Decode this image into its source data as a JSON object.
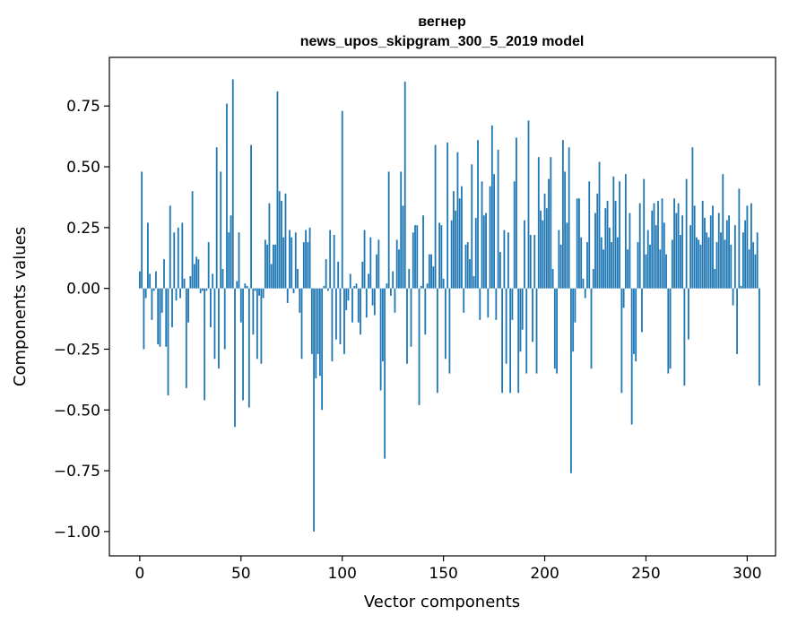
{
  "chart_data": {
    "type": "bar",
    "title_line1": "вегнер",
    "title_line2": "news_upos_skipgram_300_5_2019 model",
    "xlabel": "Vector components",
    "ylabel": "Components values",
    "xlim": [
      -15,
      314
    ],
    "ylim": [
      -1.1,
      0.95
    ],
    "xticks": [
      0,
      50,
      100,
      150,
      200,
      250,
      300
    ],
    "yticks": [
      0.75,
      0.5,
      0.25,
      0.0,
      -0.25,
      -0.5,
      -0.75,
      -1.0
    ],
    "ytick_labels": [
      "0.75",
      "0.50",
      "0.25",
      "0.00",
      "−0.25",
      "−0.50",
      "−0.75",
      "−1.00"
    ],
    "bar_color": "#1f77b4",
    "values": [
      0.07,
      0.48,
      -0.25,
      -0.04,
      0.27,
      0.06,
      -0.13,
      -0.01,
      0.07,
      -0.23,
      -0.24,
      -0.1,
      0.12,
      -0.24,
      -0.44,
      0.34,
      -0.16,
      0.23,
      -0.05,
      0.25,
      -0.04,
      0.27,
      0.04,
      -0.41,
      -0.14,
      0.05,
      0.4,
      0.1,
      0.13,
      0.12,
      -0.02,
      -0.01,
      -0.46,
      -0.01,
      0.19,
      -0.16,
      0.06,
      -0.29,
      0.58,
      -0.33,
      0.48,
      0.08,
      -0.25,
      0.76,
      0.23,
      0.3,
      0.86,
      -0.57,
      0.03,
      0.23,
      -0.14,
      -0.46,
      0.02,
      0.01,
      -0.49,
      0.59,
      -0.19,
      -0.01,
      -0.29,
      -0.03,
      -0.31,
      -0.04,
      0.2,
      0.18,
      0.35,
      0.1,
      0.18,
      0.18,
      0.81,
      0.4,
      0.36,
      0.21,
      0.39,
      -0.06,
      0.24,
      0.21,
      -0.02,
      0.23,
      0.08,
      -0.1,
      -0.29,
      0.19,
      0.24,
      0.19,
      0.25,
      -0.27,
      -1.0,
      -0.37,
      -0.27,
      -0.36,
      -0.5,
      0.01,
      0.12,
      -0.01,
      0.24,
      -0.3,
      0.22,
      -0.21,
      0.11,
      -0.23,
      0.73,
      -0.27,
      -0.09,
      -0.05,
      0.06,
      -0.14,
      0.01,
      0.02,
      -0.14,
      -0.19,
      0.11,
      0.24,
      -0.12,
      0.06,
      0.21,
      -0.07,
      -0.11,
      0.14,
      0.2,
      -0.42,
      -0.3,
      -0.7,
      0.02,
      0.48,
      -0.03,
      0.07,
      -0.1,
      0.2,
      0.16,
      0.48,
      0.34,
      0.85,
      -0.31,
      0.08,
      -0.24,
      0.23,
      0.26,
      0.26,
      -0.48,
      0.01,
      0.3,
      -0.19,
      0.02,
      0.14,
      0.14,
      0.09,
      0.59,
      -0.43,
      0.27,
      0.26,
      0.04,
      -0.29,
      0.6,
      -0.35,
      0.28,
      0.4,
      0.32,
      0.56,
      0.37,
      0.42,
      -0.1,
      0.18,
      0.19,
      0.12,
      0.51,
      0.05,
      0.29,
      0.61,
      -0.13,
      0.44,
      0.3,
      0.31,
      -0.12,
      0.42,
      0.67,
      0.47,
      -0.13,
      0.57,
      0.15,
      -0.43,
      0.24,
      -0.31,
      0.23,
      -0.43,
      -0.13,
      0.44,
      0.62,
      -0.43,
      -0.26,
      -0.17,
      0.28,
      -0.35,
      0.69,
      0.22,
      -0.22,
      0.22,
      -0.35,
      0.54,
      0.32,
      0.28,
      0.39,
      0.33,
      0.45,
      0.54,
      0.08,
      -0.33,
      -0.35,
      0.24,
      0.18,
      0.61,
      0.48,
      0.27,
      0.58,
      -0.76,
      -0.26,
      -0.14,
      0.37,
      0.37,
      0.21,
      0.04,
      -0.04,
      0.19,
      0.44,
      -0.33,
      0.08,
      0.31,
      0.39,
      0.52,
      0.21,
      0.16,
      0.33,
      0.36,
      0.25,
      0.19,
      0.46,
      0.36,
      0.21,
      0.44,
      -0.43,
      -0.08,
      0.47,
      0.16,
      0.31,
      -0.56,
      -0.27,
      -0.3,
      0.19,
      0.35,
      -0.18,
      0.45,
      0.14,
      0.24,
      0.18,
      0.32,
      0.35,
      0.26,
      0.36,
      0.16,
      0.37,
      0.27,
      0.14,
      -0.35,
      -0.33,
      0.2,
      0.37,
      0.31,
      0.35,
      0.22,
      0.3,
      -0.4,
      0.45,
      -0.21,
      0.26,
      0.58,
      0.34,
      0.21,
      0.2,
      0.18,
      0.36,
      0.29,
      0.23,
      0.21,
      0.3,
      0.34,
      0.08,
      0.19,
      0.31,
      0.23,
      0.47,
      0.2,
      0.28,
      0.3,
      0.18,
      -0.07,
      0.26,
      -0.27,
      0.41,
      0.01,
      0.23,
      0.28,
      0.34,
      0.16,
      0.35,
      0.19,
      0.14,
      0.23,
      -0.4
    ]
  }
}
